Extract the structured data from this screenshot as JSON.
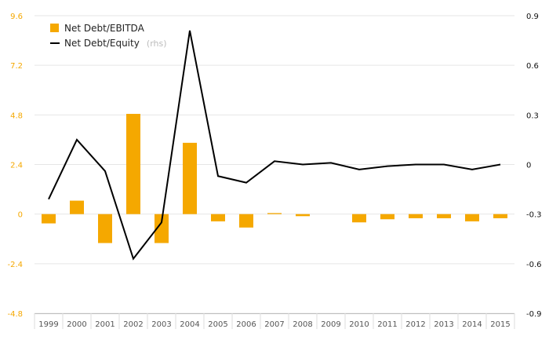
{
  "chart_data": {
    "type": "bar+line",
    "categories": [
      "1999",
      "2000",
      "2001",
      "2002",
      "2003",
      "2004",
      "2005",
      "2006",
      "2007",
      "2008",
      "2009",
      "2010",
      "2011",
      "2012",
      "2013",
      "2014",
      "2015"
    ],
    "series": [
      {
        "name": "Net Debt/EBITDA",
        "type": "bar",
        "axis": "left",
        "color": "#f5a800",
        "values": [
          -0.45,
          0.65,
          -1.4,
          4.85,
          -1.4,
          3.45,
          -0.35,
          -0.65,
          0.05,
          -0.1,
          0.0,
          -0.4,
          -0.25,
          -0.2,
          -0.2,
          -0.35,
          -0.2
        ]
      },
      {
        "name": "Net Debt/Equity",
        "legend_suffix": "(rhs)",
        "type": "line",
        "axis": "right",
        "color": "#000000",
        "values": [
          -0.21,
          0.15,
          -0.04,
          -0.57,
          -0.35,
          0.81,
          -0.07,
          -0.11,
          0.02,
          0.0,
          0.01,
          -0.03,
          -0.01,
          0.0,
          0.0,
          -0.03,
          0.0
        ]
      }
    ],
    "left_axis": {
      "ticks": [
        "9.6",
        "7.2",
        "4.8",
        "2.4",
        "0",
        "-2.4",
        "-4.8"
      ],
      "ylim": [
        -4.8,
        9.6
      ],
      "color": "#f5a800"
    },
    "right_axis": {
      "ticks": [
        "0.9",
        "0.6",
        "0.3",
        "0",
        "-0.3",
        "-0.6",
        "-0.9"
      ],
      "ylim": [
        -0.9,
        0.9
      ]
    },
    "grid": true,
    "legend": "top-left"
  }
}
